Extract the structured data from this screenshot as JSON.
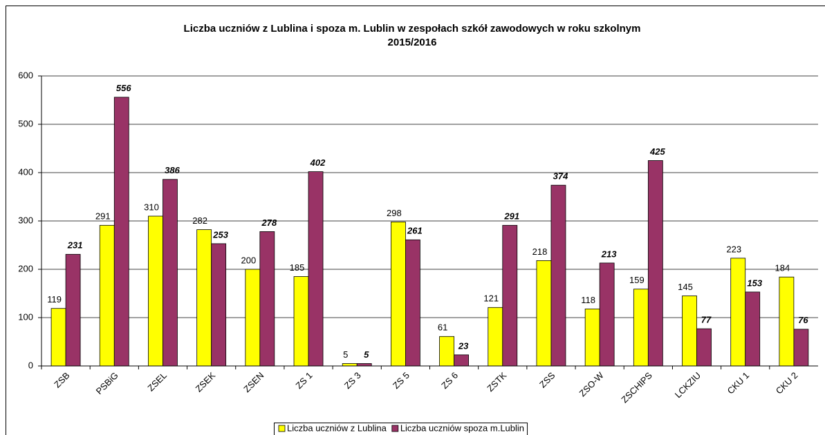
{
  "chart_data": {
    "type": "bar",
    "title": [
      "Liczba uczniów z Lublina i spoza m. Lublin w zespołach szkół zawodowych w roku szkolnym",
      "2015/2016"
    ],
    "categories": [
      "ZSB",
      "PSBiG",
      "ZSEL",
      "ZSEK",
      "ZSEN",
      "ZS 1",
      "ZS 3",
      "ZS 5",
      "ZS 6",
      "ZSTK",
      "ZSS",
      "ZSO-W",
      "ZSCHIPS",
      "LCKZIU",
      "CKU 1",
      "CKU 2"
    ],
    "series": [
      {
        "name": "Liczba uczniów z Lublina",
        "color": "#ffff00",
        "values": [
          119,
          291,
          310,
          282,
          200,
          185,
          5,
          298,
          61,
          121,
          218,
          118,
          159,
          145,
          223,
          184
        ]
      },
      {
        "name": "Liczba uczniów spoza m.Lublin",
        "color": "#993366",
        "values": [
          231,
          556,
          386,
          253,
          278,
          402,
          5,
          261,
          23,
          291,
          374,
          213,
          425,
          77,
          153,
          76
        ]
      }
    ],
    "ylim": [
      0,
      600
    ],
    "yticks": [
      0,
      100,
      200,
      300,
      400,
      500,
      600
    ],
    "grid": true,
    "legend": "bottom"
  }
}
